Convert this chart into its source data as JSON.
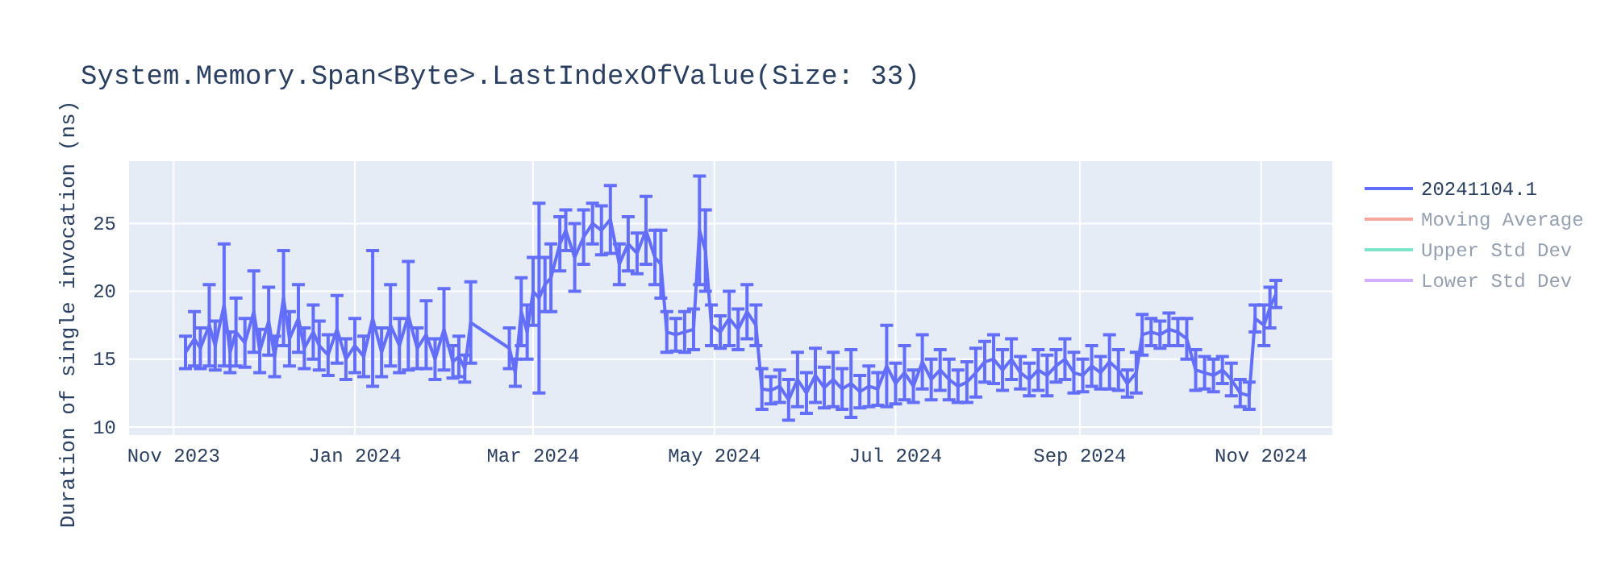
{
  "chart_data": {
    "type": "line",
    "title": "System.Memory.Span<Byte>.LastIndexOfValue(Size: 33)",
    "ylabel": "Duration of single invocation (ns)",
    "xlim": [
      "2023-10-17",
      "2024-11-25"
    ],
    "ylim": [
      9.4,
      29.6
    ],
    "xticks": [
      {
        "value": "2023-11-01",
        "label": "Nov 2023"
      },
      {
        "value": "2024-01-01",
        "label": "Jan 2024"
      },
      {
        "value": "2024-03-01",
        "label": "Mar 2024"
      },
      {
        "value": "2024-05-01",
        "label": "May 2024"
      },
      {
        "value": "2024-07-01",
        "label": "Jul 2024"
      },
      {
        "value": "2024-09-01",
        "label": "Sep 2024"
      },
      {
        "value": "2024-11-01",
        "label": "Nov 2024"
      }
    ],
    "yticks": [
      10,
      15,
      20,
      25
    ],
    "grid": true,
    "legend": "right",
    "marker": "none",
    "line_style": "solid",
    "series": [
      {
        "name": "20241104.1",
        "color": "#636efa",
        "x": [
          "2023-11-05",
          "2023-11-08",
          "2023-11-10",
          "2023-11-13",
          "2023-11-15",
          "2023-11-18",
          "2023-11-20",
          "2023-11-22",
          "2023-11-25",
          "2023-11-28",
          "2023-11-30",
          "2023-12-03",
          "2023-12-05",
          "2023-12-08",
          "2023-12-10",
          "2023-12-13",
          "2023-12-15",
          "2023-12-18",
          "2023-12-20",
          "2023-12-23",
          "2023-12-26",
          "2023-12-29",
          "2024-01-01",
          "2024-01-04",
          "2024-01-07",
          "2024-01-10",
          "2024-01-13",
          "2024-01-16",
          "2024-01-19",
          "2024-01-22",
          "2024-01-25",
          "2024-01-28",
          "2024-01-31",
          "2024-02-03",
          "2024-02-05",
          "2024-02-07",
          "2024-02-09",
          "2024-02-22",
          "2024-02-24",
          "2024-02-26",
          "2024-02-28",
          "2024-03-01",
          "2024-03-03",
          "2024-03-05",
          "2024-03-07",
          "2024-03-10",
          "2024-03-12",
          "2024-03-15",
          "2024-03-18",
          "2024-03-21",
          "2024-03-24",
          "2024-03-27",
          "2024-03-30",
          "2024-04-02",
          "2024-04-05",
          "2024-04-08",
          "2024-04-11",
          "2024-04-13",
          "2024-04-15",
          "2024-04-18",
          "2024-04-21",
          "2024-04-24",
          "2024-04-26",
          "2024-04-28",
          "2024-04-30",
          "2024-05-03",
          "2024-05-06",
          "2024-05-09",
          "2024-05-12",
          "2024-05-15",
          "2024-05-17",
          "2024-05-20",
          "2024-05-23",
          "2024-05-26",
          "2024-05-29",
          "2024-06-01",
          "2024-06-04",
          "2024-06-07",
          "2024-06-10",
          "2024-06-13",
          "2024-06-16",
          "2024-06-19",
          "2024-06-22",
          "2024-06-25",
          "2024-06-28",
          "2024-07-01",
          "2024-07-04",
          "2024-07-07",
          "2024-07-10",
          "2024-07-13",
          "2024-07-16",
          "2024-07-19",
          "2024-07-22",
          "2024-07-25",
          "2024-07-28",
          "2024-07-31",
          "2024-08-03",
          "2024-08-06",
          "2024-08-09",
          "2024-08-12",
          "2024-08-15",
          "2024-08-18",
          "2024-08-21",
          "2024-08-24",
          "2024-08-27",
          "2024-08-30",
          "2024-09-02",
          "2024-09-05",
          "2024-09-08",
          "2024-09-11",
          "2024-09-14",
          "2024-09-17",
          "2024-09-20",
          "2024-09-22",
          "2024-09-25",
          "2024-09-28",
          "2024-10-01",
          "2024-10-04",
          "2024-10-07",
          "2024-10-10",
          "2024-10-13",
          "2024-10-16",
          "2024-10-19",
          "2024-10-22",
          "2024-10-25",
          "2024-10-28",
          "2024-10-30",
          "2024-11-02",
          "2024-11-04",
          "2024-11-06"
        ],
        "values": [
          15.5,
          16.5,
          15.8,
          17.5,
          16.0,
          19.0,
          15.5,
          17.0,
          16.2,
          18.5,
          15.6,
          17.8,
          15.2,
          19.5,
          16.5,
          18.0,
          15.8,
          17.0,
          16.0,
          15.3,
          17.2,
          15.0,
          16.0,
          15.2,
          18.0,
          15.5,
          17.5,
          16.0,
          18.2,
          15.8,
          16.8,
          15.0,
          17.2,
          14.8,
          15.2,
          14.3,
          17.7,
          15.8,
          14.0,
          18.5,
          17.0,
          20.0,
          19.5,
          20.5,
          21.0,
          23.5,
          24.5,
          22.5,
          24.0,
          25.0,
          24.5,
          25.3,
          22.0,
          23.5,
          22.8,
          24.5,
          22.5,
          22.0,
          17.0,
          16.8,
          17.0,
          17.2,
          24.5,
          23.0,
          17.5,
          17.0,
          18.0,
          17.2,
          18.5,
          17.5,
          12.8,
          12.7,
          13.0,
          12.0,
          13.5,
          12.5,
          13.8,
          12.9,
          13.5,
          12.8,
          13.2,
          12.6,
          13.0,
          12.8,
          14.5,
          13.2,
          14.0,
          13.0,
          14.8,
          13.5,
          14.2,
          13.5,
          13.0,
          13.3,
          14.0,
          14.8,
          15.0,
          14.2,
          15.0,
          14.0,
          13.5,
          14.2,
          13.8,
          14.5,
          15.0,
          14.0,
          13.8,
          14.5,
          14.0,
          14.8,
          14.2,
          13.2,
          14.0,
          16.8,
          17.0,
          16.8,
          17.2,
          17.0,
          16.5,
          14.2,
          14.0,
          13.8,
          14.2,
          13.5,
          12.5,
          12.3,
          18.0,
          17.5,
          18.8,
          19.8
        ],
        "errors": [
          1.2,
          2.0,
          1.5,
          3.0,
          1.8,
          4.5,
          1.5,
          2.5,
          1.8,
          3.0,
          1.6,
          2.5,
          1.5,
          3.5,
          2.0,
          2.5,
          1.5,
          2.0,
          1.8,
          1.5,
          2.5,
          1.5,
          2.0,
          1.5,
          5.0,
          1.8,
          3.0,
          2.0,
          4.0,
          1.5,
          2.5,
          1.5,
          3.0,
          1.2,
          1.5,
          1.0,
          3.0,
          1.5,
          1.0,
          2.5,
          2.0,
          2.5,
          7.0,
          2.0,
          2.5,
          2.0,
          1.5,
          2.5,
          2.0,
          1.5,
          1.8,
          2.5,
          1.5,
          2.0,
          1.5,
          2.5,
          2.0,
          2.5,
          1.5,
          1.2,
          1.5,
          1.5,
          4.0,
          3.0,
          1.5,
          1.2,
          2.0,
          1.5,
          2.0,
          1.5,
          1.5,
          1.0,
          1.2,
          1.5,
          2.0,
          1.5,
          2.0,
          1.5,
          2.0,
          1.5,
          2.5,
          1.2,
          1.5,
          1.2,
          3.0,
          1.5,
          2.0,
          1.2,
          2.0,
          1.5,
          1.5,
          1.5,
          1.2,
          1.5,
          1.8,
          1.5,
          1.8,
          1.5,
          1.5,
          1.2,
          1.2,
          1.5,
          1.5,
          1.2,
          1.5,
          1.5,
          1.2,
          1.5,
          1.2,
          2.0,
          1.5,
          1.0,
          1.5,
          1.5,
          1.0,
          1.0,
          1.2,
          1.0,
          1.5,
          1.5,
          1.2,
          1.2,
          1.0,
          1.2,
          1.0,
          1.0,
          1.0,
          1.5,
          1.5,
          1.0
        ]
      },
      {
        "name": "Moving Average",
        "color": "#ef553b"
      },
      {
        "name": "Upper Std Dev",
        "color": "#00cc96"
      },
      {
        "name": "Lower Std Dev",
        "color": "#ab63fa"
      }
    ]
  }
}
